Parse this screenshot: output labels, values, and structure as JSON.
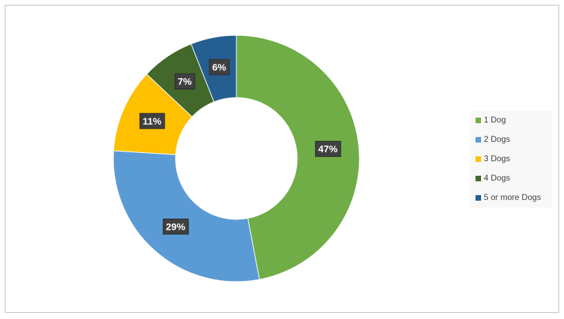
{
  "chart_data": {
    "type": "donut",
    "categories": [
      "1 Dog",
      "2 Dogs",
      "3 Dogs",
      "4 Dogs",
      "5 or more Dogs"
    ],
    "values": [
      47,
      29,
      11,
      7,
      6
    ],
    "value_labels": [
      "47%",
      "29%",
      "11%",
      "7%",
      "6%"
    ],
    "colors": [
      "#70ad47",
      "#5b9bd5",
      "#ffc000",
      "#43682b",
      "#255e91"
    ],
    "legend": "right"
  }
}
